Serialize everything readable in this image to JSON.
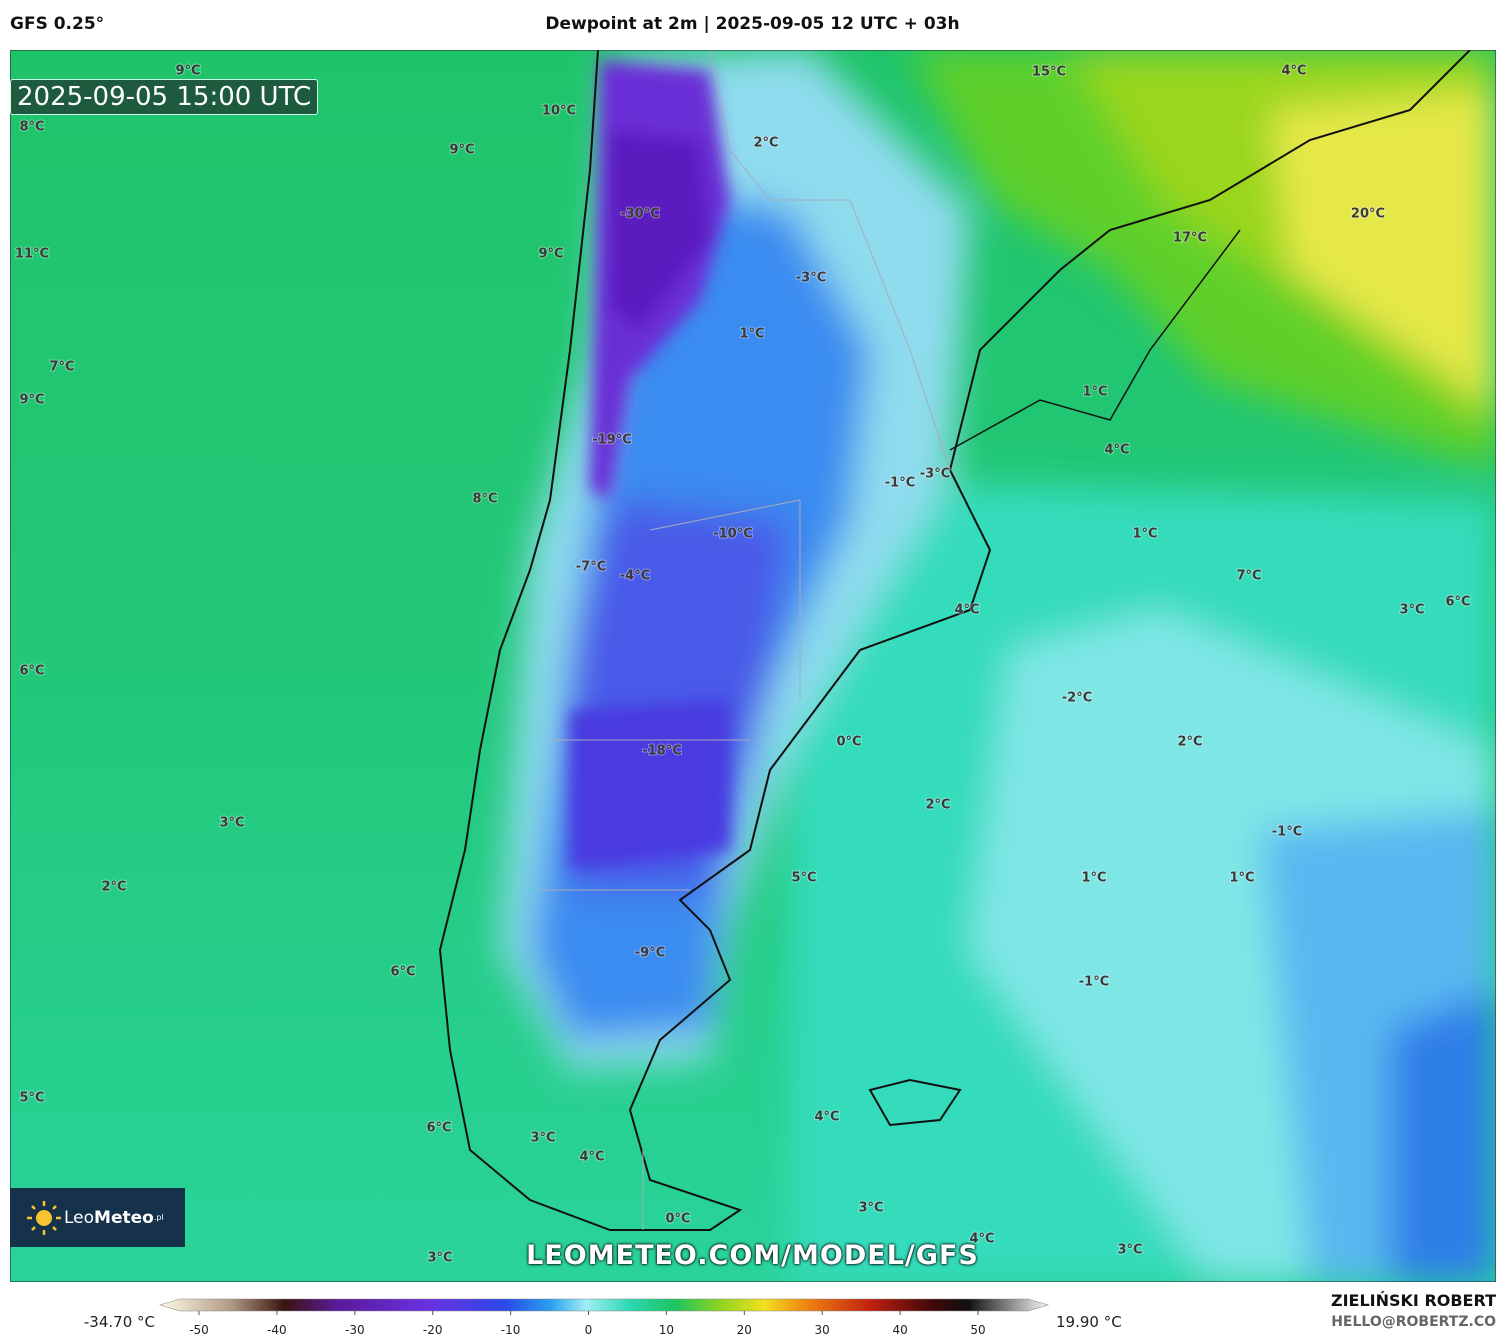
{
  "header": {
    "model": "GFS 0.25°",
    "title": "Dewpoint at 2m | 2025-09-05 12 UTC + 03h"
  },
  "timestamp": "2025-09-05 15:00 UTC",
  "map": {
    "labels": [
      "9°C",
      "10°C",
      "8°C",
      "9°C",
      "2°C",
      "15°C",
      "4°C",
      "20°C",
      "17°C",
      "-30°C",
      "11°C",
      "9°C",
      "-3°C",
      "1°C",
      "7°C",
      "9°C",
      "1°C",
      "4°C",
      "-19°C",
      "-1°C",
      "-3°C",
      "8°C",
      "1°C",
      "-10°C",
      "-7°C",
      "-4°C",
      "7°C",
      "4°C",
      "3°C",
      "6°C",
      "6°C",
      "-2°C",
      "0°C",
      "-18°C",
      "2°C",
      "2°C",
      "3°C",
      "-1°C",
      "2°C",
      "5°C",
      "1°C",
      "1°C",
      "6°C",
      "-9°C",
      "-1°C",
      "5°C",
      "4°C",
      "6°C",
      "3°C",
      "4°C",
      "3°C",
      "0°C",
      "4°C",
      "3°C",
      "3°C"
    ]
  },
  "watermark": "LEOMETEO.COM/MODEL/GFS",
  "logo": {
    "brand_light": "Leo",
    "brand_bold": "Meteo",
    "suffix": ".pl"
  },
  "colorbar": {
    "min_label": "-34.70 °C",
    "max_label": "19.90 °C",
    "ticks": [
      -50,
      -40,
      -30,
      -20,
      -10,
      0,
      10,
      20,
      30,
      40,
      50
    ]
  },
  "footer": {
    "author": "ZIELIŃSKI ROBERT",
    "email": "HELLO@ROBERTZ.CO"
  }
}
